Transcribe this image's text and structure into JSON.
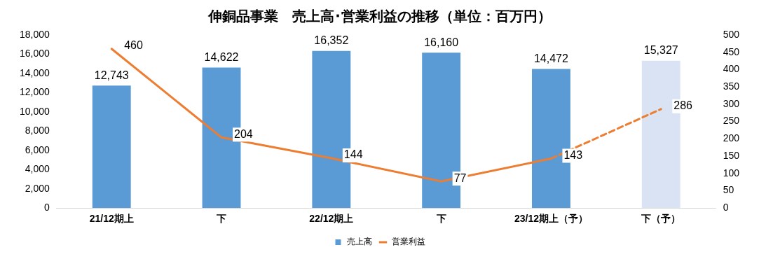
{
  "chart_data": {
    "type": "bar",
    "title": "伸銅品事業　売上高･営業利益の推移（単位：百万円）",
    "categories": [
      "21/12期上",
      "下",
      "22/12期上",
      "下",
      "23/12期上（予）",
      "下（予）"
    ],
    "series": [
      {
        "name": "売上高",
        "colors": [
          "#5b9bd5",
          "#5b9bd5",
          "#5b9bd5",
          "#5b9bd5",
          "#5b9bd5",
          "#dae3f3"
        ],
        "values": [
          12743,
          14622,
          16352,
          16160,
          14472,
          15327
        ],
        "value_labels": [
          "12,743",
          "14,622",
          "16,352",
          "16,160",
          "14,472",
          "15,327"
        ]
      },
      {
        "name": "営業利益",
        "type": "line",
        "axis": "y2",
        "color": "#ed7d31",
        "line_style": "solid",
        "values": [
          460,
          204,
          144,
          77,
          143,
          null
        ],
        "value_labels": [
          "460",
          "204",
          "144",
          "77",
          "143",
          null
        ]
      },
      {
        "type": "line",
        "axis": "y2",
        "color": "#ed7d31",
        "line_style": "dashed",
        "values": [
          null,
          null,
          null,
          null,
          143,
          286
        ],
        "value_labels": [
          null,
          null,
          null,
          null,
          null,
          "286"
        ]
      }
    ],
    "ylim": [
      0,
      18000
    ],
    "yticks": [
      {
        "value": 0,
        "label": "0"
      },
      {
        "value": 2000,
        "label": "2,000"
      },
      {
        "value": 4000,
        "label": "4,000"
      },
      {
        "value": 6000,
        "label": "6,000"
      },
      {
        "value": 8000,
        "label": "8,000"
      },
      {
        "value": 10000,
        "label": "10,000"
      },
      {
        "value": 12000,
        "label": "12,000"
      },
      {
        "value": 14000,
        "label": "14,000"
      },
      {
        "value": 16000,
        "label": "16,000"
      },
      {
        "value": 18000,
        "label": "18,000"
      }
    ],
    "y2lim": [
      0,
      500
    ],
    "y2ticks": [
      0,
      50,
      100,
      150,
      200,
      250,
      300,
      350,
      400,
      450,
      500
    ],
    "grid": false,
    "legend": "bottom",
    "marker": "none"
  }
}
